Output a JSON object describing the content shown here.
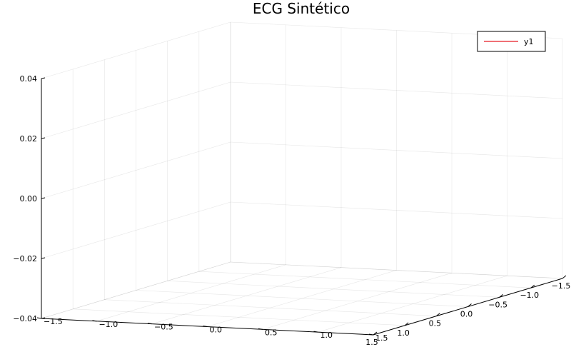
{
  "chart_data": {
    "type": "line",
    "projection": "3d",
    "title": "ECG Sintético",
    "legend_position": "top-right",
    "grid": true,
    "series": [
      {
        "name": "y1",
        "color": "#e81b23",
        "values": []
      }
    ],
    "x_axis": {
      "range": [
        -1.5,
        1.5
      ],
      "ticks": [
        "−1.5",
        "−1.0",
        "−0.5",
        "0.0",
        "0.5",
        "1.0",
        "1.5"
      ]
    },
    "y_axis": {
      "range": [
        -1.5,
        1.5
      ],
      "ticks": [
        "−1.5",
        "−1.0",
        "−0.5",
        "0.0",
        "0.5",
        "1.0",
        "1.5"
      ]
    },
    "z_axis": {
      "range": [
        -0.04,
        0.04
      ],
      "ticks": [
        "−0.04",
        "−0.02",
        "0.00",
        "0.02",
        "0.04"
      ]
    }
  }
}
